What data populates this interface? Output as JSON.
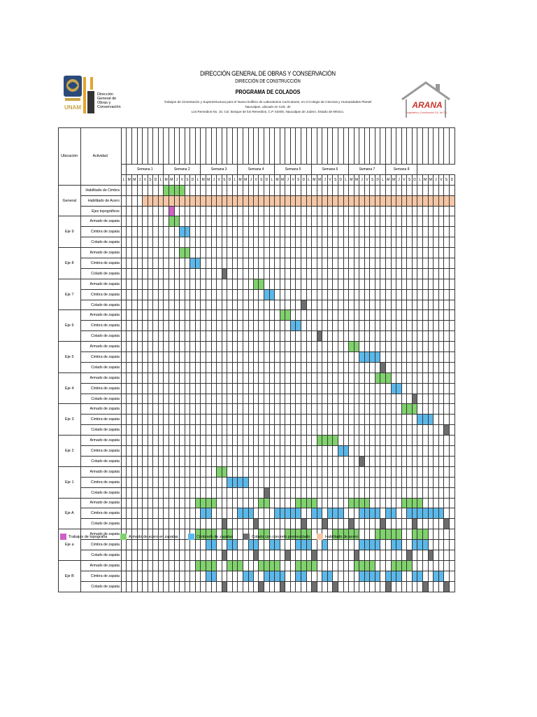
{
  "header": {
    "title": "DIRECCIÓN GENERAL DE OBRAS Y CONSERVACIÓN",
    "subtitle": "DIRECCIÓN DE CONSTRUCCIÓN",
    "program": "PROGRAMA DE COLADOS",
    "description_line1": "Trabajos de Cimentación y Superestructura para el Nuevo Edificio de Laboratorios Curriculares, en el Colegio de Ciencias y Humanidades Plantel Naucalpan, ubicado en Calz. de",
    "description_line2": "Los Remedios No. 10, Col. Bosque de los Remedios, C.P. 53400, Naucalpan de Juárez, Estado de México."
  },
  "logos": {
    "unam": "UNAM",
    "dgoc_line1": "Dirección",
    "dgoc_line2": "General de",
    "dgoc_line3": "Obras y",
    "dgoc_line4": "Conservación",
    "arana_name": "ARANA",
    "arana_sub": "Ingeniería y Construcción S.A. de C.V."
  },
  "table": {
    "col_ubicacion": "Ubicación",
    "col_actividad": "Actividad",
    "weeks": [
      "Semana 1",
      "Semana 2",
      "Semana 3",
      "Semana 4",
      "Semana 5",
      "Semana 6",
      "Semana 7",
      "Semana 8"
    ],
    "days": [
      "L",
      "M",
      "M",
      "J",
      "V",
      "S",
      "D"
    ]
  },
  "legend": [
    {
      "label": "Trabajos de topografía",
      "color": "#d060c8"
    },
    {
      "label": "Armado de acero en zapatas",
      "color": "#7fd26c"
    },
    {
      "label": "Cimbrado de zapatas",
      "color": "#5bb8ea"
    },
    {
      "label": "Colado con concreto premezclado",
      "color": "#6d6d6d"
    },
    {
      "label": "Habilitado de acero",
      "color": "#f5c6a5"
    }
  ]
}
